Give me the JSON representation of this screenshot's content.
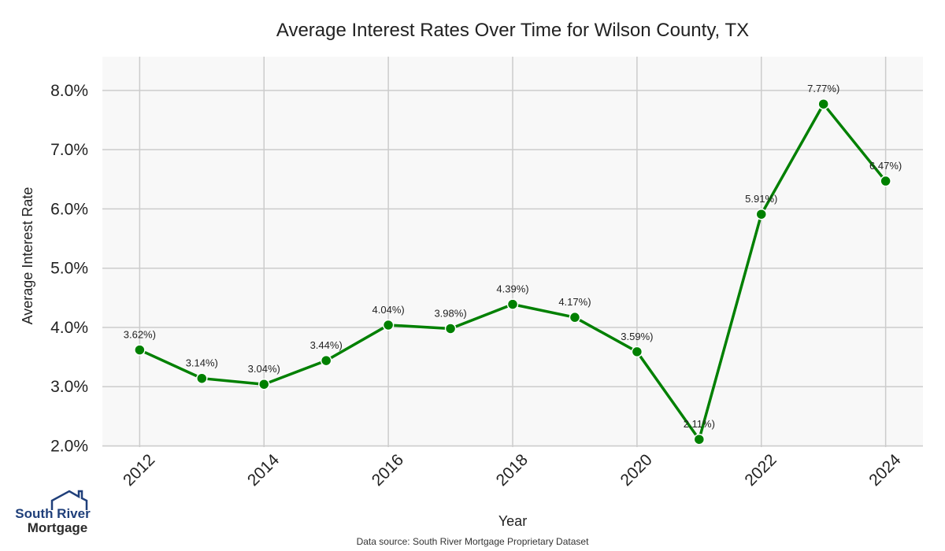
{
  "chart_data": {
    "type": "line",
    "title": "Average Interest Rates Over Time for Wilson County, TX",
    "xlabel": "Year",
    "ylabel": "Average Interest Rate",
    "x": [
      2012,
      2013,
      2014,
      2015,
      2016,
      2017,
      2018,
      2019,
      2020,
      2021,
      2022,
      2023,
      2024
    ],
    "values": [
      3.62,
      3.14,
      3.04,
      3.44,
      4.04,
      3.98,
      4.39,
      4.17,
      3.59,
      2.11,
      5.91,
      7.77,
      6.47
    ],
    "data_labels": [
      "3.62%)",
      "3.14%)",
      "3.04%)",
      "3.44%)",
      "4.04%)",
      "3.98%)",
      "4.39%)",
      "4.17%)",
      "3.59%)",
      "2.11%)",
      "5.91%)",
      "7.77%)",
      "6.47%)"
    ],
    "xticks": [
      2012,
      2014,
      2016,
      2018,
      2020,
      2022,
      2024
    ],
    "xtick_labels": [
      "2012",
      "2014",
      "2016",
      "2018",
      "2020",
      "2022",
      "2024"
    ],
    "yticks": [
      2.0,
      3.0,
      4.0,
      5.0,
      6.0,
      7.0,
      8.0
    ],
    "ytick_labels": [
      "2.0%",
      "3.0%",
      "4.0%",
      "5.0%",
      "6.0%",
      "7.0%",
      "8.0%"
    ],
    "xlim": [
      2011.4,
      2024.6
    ],
    "ylim": [
      1.98,
      8.57
    ],
    "grid": true,
    "line_color": "#008000",
    "background_color": "#f8f8f8",
    "grid_color": "#cccccc"
  },
  "footer": {
    "source": "Data source: South River Mortgage Proprietary Dataset"
  },
  "logo": {
    "line1": "South River",
    "line2": "Mortgage"
  }
}
